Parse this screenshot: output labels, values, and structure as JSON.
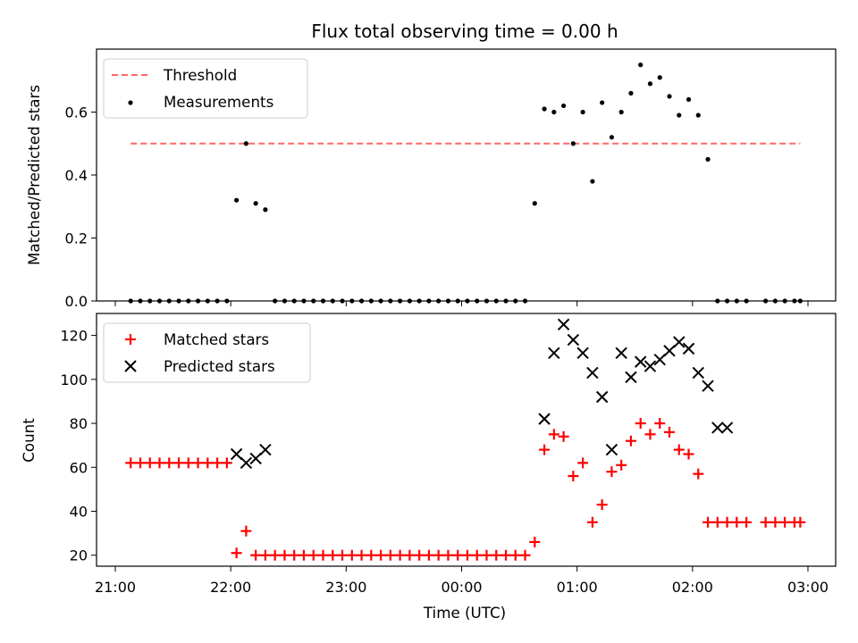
{
  "chart_data": [
    {
      "type": "scatter",
      "title": "Flux total observing time = 0.00 h",
      "xlabel": "",
      "ylabel": "Matched/Predicted stars",
      "ylim": [
        0,
        0.8
      ],
      "yticks": [
        0.0,
        0.2,
        0.4,
        0.6
      ],
      "ytick_labels": [
        "0.0",
        "0.2",
        "0.4",
        "0.6"
      ],
      "legend_position": "upper-left",
      "threshold": {
        "name": "Threshold",
        "value": 0.5,
        "x_start": "21:08",
        "x_end": "02:56",
        "color": "#ff6666",
        "style": "dashed"
      },
      "series": [
        {
          "name": "Measurements",
          "color": "#000000",
          "marker": "dot",
          "x": [
            "21:08",
            "21:13",
            "21:18",
            "21:23",
            "21:28",
            "21:33",
            "21:38",
            "21:43",
            "21:48",
            "21:53",
            "21:58",
            "22:03",
            "22:08",
            "22:13",
            "22:18",
            "22:23",
            "22:28",
            "22:33",
            "22:38",
            "22:43",
            "22:48",
            "22:53",
            "22:58",
            "23:03",
            "23:08",
            "23:13",
            "23:18",
            "23:23",
            "23:28",
            "23:33",
            "23:38",
            "23:43",
            "23:48",
            "23:53",
            "23:58",
            "00:03",
            "00:08",
            "00:13",
            "00:18",
            "00:23",
            "00:28",
            "00:33",
            "00:38",
            "00:43",
            "00:48",
            "00:53",
            "00:58",
            "01:03",
            "01:08",
            "01:13",
            "01:18",
            "01:23",
            "01:28",
            "01:33",
            "01:38",
            "01:43",
            "01:48",
            "01:53",
            "01:58",
            "02:03",
            "02:08",
            "02:13",
            "02:18",
            "02:23",
            "02:28",
            "02:38",
            "02:43",
            "02:48",
            "02:53",
            "02:56"
          ],
          "y": [
            0,
            0,
            0,
            0,
            0,
            0,
            0,
            0,
            0,
            0,
            0,
            0.32,
            0.5,
            0.31,
            0.29,
            0,
            0,
            0,
            0,
            0,
            0,
            0,
            0,
            0,
            0,
            0,
            0,
            0,
            0,
            0,
            0,
            0,
            0,
            0,
            0,
            0,
            0,
            0,
            0,
            0,
            0,
            0,
            0.31,
            0.61,
            0.6,
            0.62,
            0.5,
            0.6,
            0.38,
            0.63,
            0.52,
            0.6,
            0.66,
            0.75,
            0.69,
            0.71,
            0.65,
            0.59,
            0.64,
            0.59,
            0.45,
            0,
            0,
            0,
            0,
            0,
            0,
            0,
            0,
            0
          ]
        }
      ]
    },
    {
      "type": "scatter",
      "title": "",
      "xlabel": "Time (UTC)",
      "ylabel": "Count",
      "ylim": [
        15,
        130
      ],
      "yticks": [
        20,
        40,
        60,
        80,
        100,
        120
      ],
      "ytick_labels": [
        "20",
        "40",
        "60",
        "80",
        "100",
        "120"
      ],
      "xtick_labels": [
        "21:00",
        "22:00",
        "23:00",
        "00:00",
        "01:00",
        "02:00",
        "03:00"
      ],
      "legend_position": "upper-left",
      "series": [
        {
          "name": "Matched stars",
          "color": "#ff0000",
          "marker": "plus",
          "x": [
            "21:08",
            "21:13",
            "21:18",
            "21:23",
            "21:28",
            "21:33",
            "21:38",
            "21:43",
            "21:48",
            "21:53",
            "21:58",
            "22:03",
            "22:08",
            "22:13",
            "22:18",
            "22:23",
            "22:28",
            "22:33",
            "22:38",
            "22:43",
            "22:48",
            "22:53",
            "22:58",
            "23:03",
            "23:08",
            "23:13",
            "23:18",
            "23:23",
            "23:28",
            "23:33",
            "23:38",
            "23:43",
            "23:48",
            "23:53",
            "23:58",
            "00:03",
            "00:08",
            "00:13",
            "00:18",
            "00:23",
            "00:28",
            "00:33",
            "00:38",
            "00:43",
            "00:48",
            "00:53",
            "00:58",
            "01:03",
            "01:08",
            "01:13",
            "01:18",
            "01:23",
            "01:28",
            "01:33",
            "01:38",
            "01:43",
            "01:48",
            "01:53",
            "01:58",
            "02:03",
            "02:08",
            "02:13",
            "02:18",
            "02:23",
            "02:28",
            "02:38",
            "02:43",
            "02:48",
            "02:53",
            "02:56"
          ],
          "y": [
            62,
            62,
            62,
            62,
            62,
            62,
            62,
            62,
            62,
            62,
            62,
            21,
            31,
            20,
            20,
            20,
            20,
            20,
            20,
            20,
            20,
            20,
            20,
            20,
            20,
            20,
            20,
            20,
            20,
            20,
            20,
            20,
            20,
            20,
            20,
            20,
            20,
            20,
            20,
            20,
            20,
            20,
            26,
            68,
            75,
            74,
            56,
            62,
            35,
            43,
            58,
            61,
            72,
            80,
            75,
            80,
            76,
            68,
            66,
            57,
            35,
            35,
            35,
            35,
            35,
            35,
            35,
            35,
            35,
            35
          ]
        },
        {
          "name": "Predicted stars",
          "color": "#000000",
          "marker": "x",
          "x": [
            "22:03",
            "22:08",
            "22:13",
            "22:18",
            "00:43",
            "00:48",
            "00:53",
            "00:58",
            "01:03",
            "01:08",
            "01:13",
            "01:18",
            "01:23",
            "01:28",
            "01:33",
            "01:38",
            "01:43",
            "01:48",
            "01:53",
            "01:58",
            "02:03",
            "02:08",
            "02:13",
            "02:18"
          ],
          "y": [
            66,
            62,
            64,
            68,
            82,
            112,
            125,
            118,
            112,
            103,
            92,
            68,
            112,
            101,
            108,
            106,
            109,
            113,
            117,
            114,
            103,
            97,
            78,
            78
          ]
        }
      ]
    }
  ]
}
